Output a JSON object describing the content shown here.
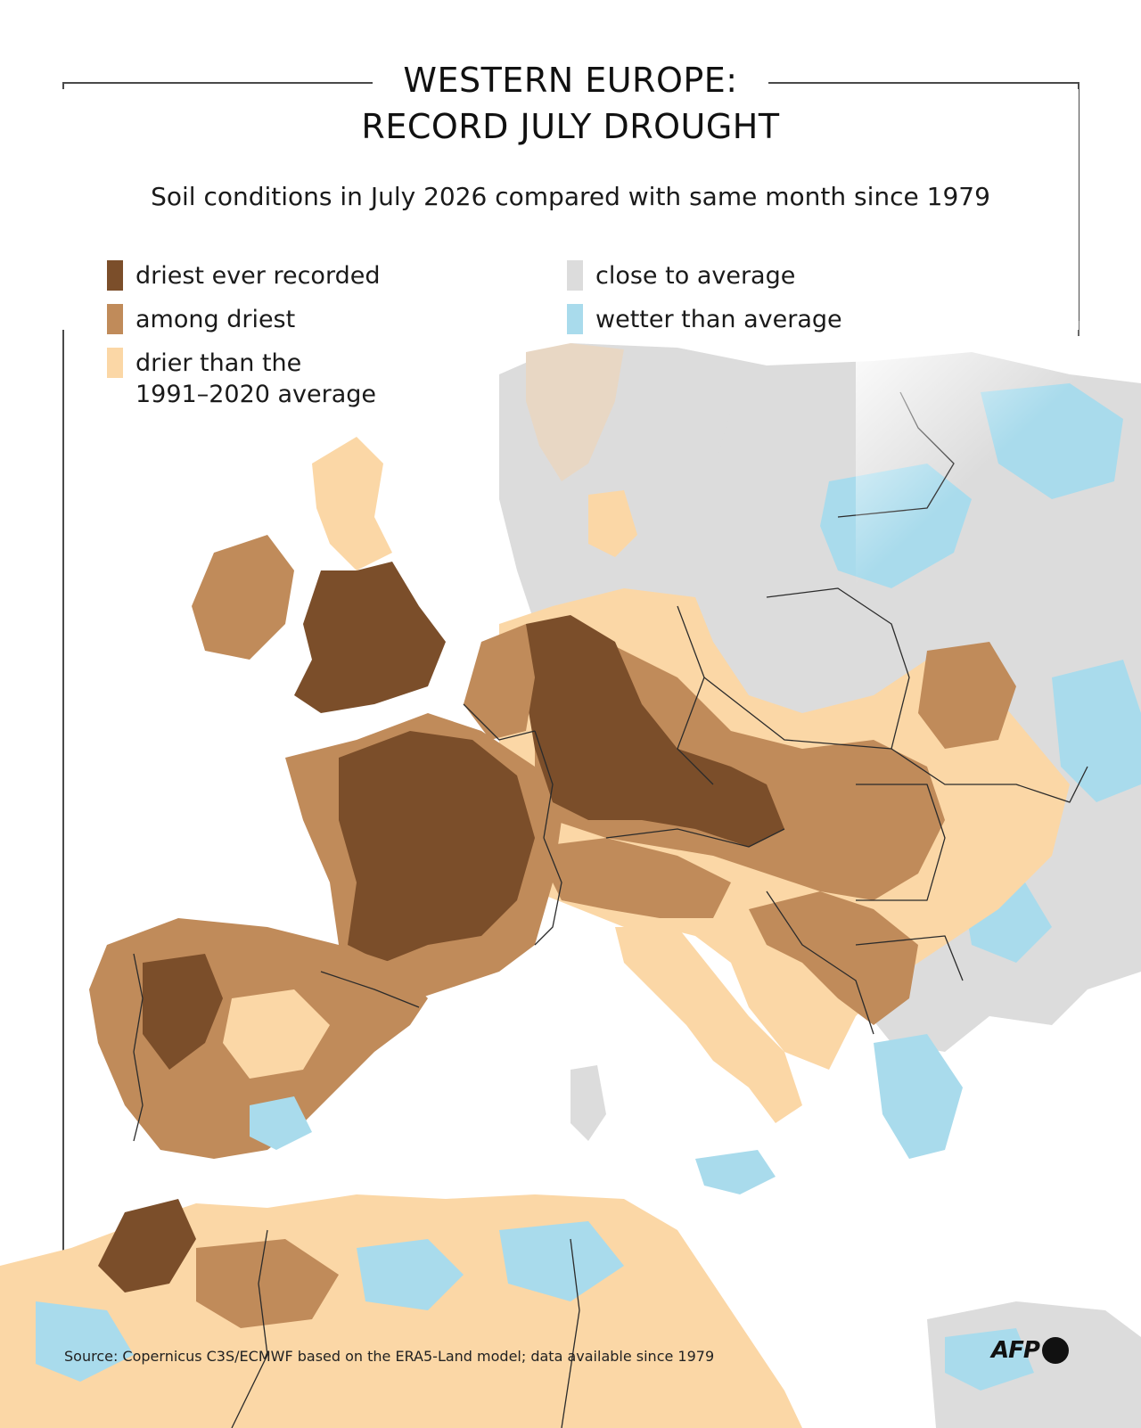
{
  "header": {
    "title_line1": "WESTERN EUROPE:",
    "title_line2": "RECORD JULY DROUGHT",
    "subtitle": "Soil conditions in July 2026 compared with same month since 1979"
  },
  "legend": [
    {
      "label": "driest ever recorded",
      "color": "#7b4e2a"
    },
    {
      "label": "among driest",
      "color": "#c08b5a"
    },
    {
      "label": "drier than the\n1991–2020 average",
      "color": "#fbd7a6"
    },
    {
      "label": "close to average",
      "color": "#dcdcdc"
    },
    {
      "label": "wetter than average",
      "color": "#a9dbec"
    }
  ],
  "colors": {
    "sea": "#ffffff",
    "border": "#2b2b2b",
    "frame": "#4a4a4a"
  },
  "footer": {
    "source": "Source: Copernicus C3S/ECMWF based on the ERA5-Land model; data available since 1979",
    "logo_text": "AFP"
  }
}
